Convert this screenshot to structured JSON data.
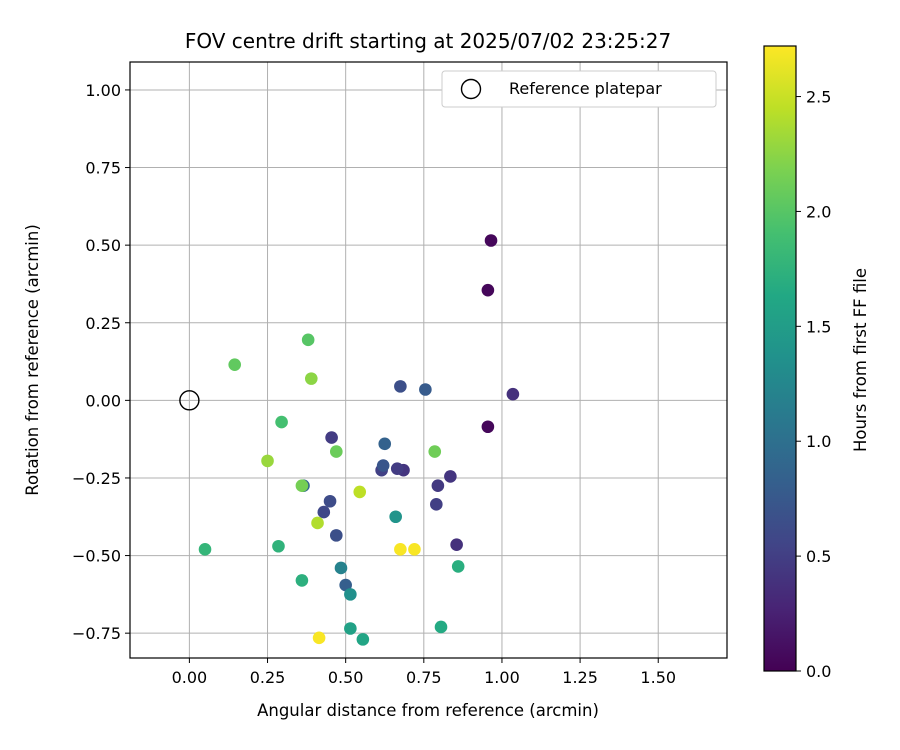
{
  "chart_data": {
    "type": "scatter",
    "title": "FOV centre drift starting at 2025/07/02 23:25:27",
    "xlabel": "Angular distance from reference (arcmin)",
    "ylabel": "Rotation from reference (arcmin)",
    "xlim": [
      -0.19,
      1.72
    ],
    "ylim": [
      -0.83,
      1.09
    ],
    "xticks": [
      0.0,
      0.25,
      0.5,
      0.75,
      1.0,
      1.25,
      1.5
    ],
    "xtick_labels": [
      "0.00",
      "0.25",
      "0.50",
      "0.75",
      "1.00",
      "1.25",
      "1.50"
    ],
    "yticks": [
      -0.75,
      -0.5,
      -0.25,
      0.0,
      0.25,
      0.5,
      0.75,
      1.0
    ],
    "ytick_labels": [
      "−0.75",
      "−0.50",
      "−0.25",
      "0.00",
      "0.25",
      "0.50",
      "0.75",
      "1.00"
    ],
    "grid": true,
    "colormap": "viridis",
    "colorbar": {
      "label": "Hours from first FF file",
      "range": [
        0.0,
        2.72
      ],
      "ticks": [
        0.0,
        0.5,
        1.0,
        1.5,
        2.0,
        2.5
      ],
      "tick_labels": [
        "0.0",
        "0.5",
        "1.0",
        "1.5",
        "2.0",
        "2.5"
      ]
    },
    "legend": {
      "position": "top-right",
      "entries": [
        "Reference platepar"
      ]
    },
    "reference_point": {
      "x": 0.0,
      "y": 0.0
    },
    "points": [
      {
        "x": 0.965,
        "y": 0.515,
        "t": 0.05
      },
      {
        "x": 0.955,
        "y": 0.355,
        "t": 0.05
      },
      {
        "x": 0.955,
        "y": -0.085,
        "t": 0.05
      },
      {
        "x": 1.035,
        "y": 0.02,
        "t": 0.38
      },
      {
        "x": 0.855,
        "y": -0.465,
        "t": 0.38
      },
      {
        "x": 0.835,
        "y": -0.245,
        "t": 0.42
      },
      {
        "x": 0.795,
        "y": -0.275,
        "t": 0.45
      },
      {
        "x": 0.79,
        "y": -0.335,
        "t": 0.5
      },
      {
        "x": 0.685,
        "y": -0.225,
        "t": 0.42
      },
      {
        "x": 0.665,
        "y": -0.22,
        "t": 0.48
      },
      {
        "x": 0.615,
        "y": -0.225,
        "t": 0.52
      },
      {
        "x": 0.62,
        "y": -0.21,
        "t": 0.72
      },
      {
        "x": 0.625,
        "y": -0.14,
        "t": 0.85
      },
      {
        "x": 0.455,
        "y": -0.12,
        "t": 0.48
      },
      {
        "x": 0.675,
        "y": 0.045,
        "t": 0.65
      },
      {
        "x": 0.755,
        "y": 0.035,
        "t": 0.78
      },
      {
        "x": 0.45,
        "y": -0.325,
        "t": 0.62
      },
      {
        "x": 0.43,
        "y": -0.36,
        "t": 0.58
      },
      {
        "x": 0.47,
        "y": -0.435,
        "t": 0.65
      },
      {
        "x": 0.365,
        "y": -0.275,
        "t": 0.88
      },
      {
        "x": 0.5,
        "y": -0.595,
        "t": 0.82
      },
      {
        "x": 0.485,
        "y": -0.54,
        "t": 1.2
      },
      {
        "x": 0.515,
        "y": -0.625,
        "t": 1.35
      },
      {
        "x": 0.66,
        "y": -0.375,
        "t": 1.4
      },
      {
        "x": 0.515,
        "y": -0.735,
        "t": 1.55
      },
      {
        "x": 0.555,
        "y": -0.77,
        "t": 1.6
      },
      {
        "x": 0.805,
        "y": -0.73,
        "t": 1.65
      },
      {
        "x": 0.86,
        "y": -0.535,
        "t": 1.7
      },
      {
        "x": 0.36,
        "y": -0.58,
        "t": 1.72
      },
      {
        "x": 0.285,
        "y": -0.47,
        "t": 1.75
      },
      {
        "x": 0.05,
        "y": -0.48,
        "t": 1.78
      },
      {
        "x": 0.295,
        "y": -0.07,
        "t": 1.9
      },
      {
        "x": 0.38,
        "y": 0.195,
        "t": 2.0
      },
      {
        "x": 0.145,
        "y": 0.115,
        "t": 2.05
      },
      {
        "x": 0.47,
        "y": -0.165,
        "t": 2.1
      },
      {
        "x": 0.785,
        "y": -0.165,
        "t": 2.12
      },
      {
        "x": 0.36,
        "y": -0.275,
        "t": 2.15
      },
      {
        "x": 0.39,
        "y": 0.07,
        "t": 2.25
      },
      {
        "x": 0.25,
        "y": -0.195,
        "t": 2.3
      },
      {
        "x": 0.41,
        "y": -0.395,
        "t": 2.4
      },
      {
        "x": 0.545,
        "y": -0.295,
        "t": 2.45
      },
      {
        "x": 0.415,
        "y": -0.765,
        "t": 2.7
      },
      {
        "x": 0.675,
        "y": -0.48,
        "t": 2.7
      },
      {
        "x": 0.72,
        "y": -0.48,
        "t": 2.7
      }
    ]
  }
}
